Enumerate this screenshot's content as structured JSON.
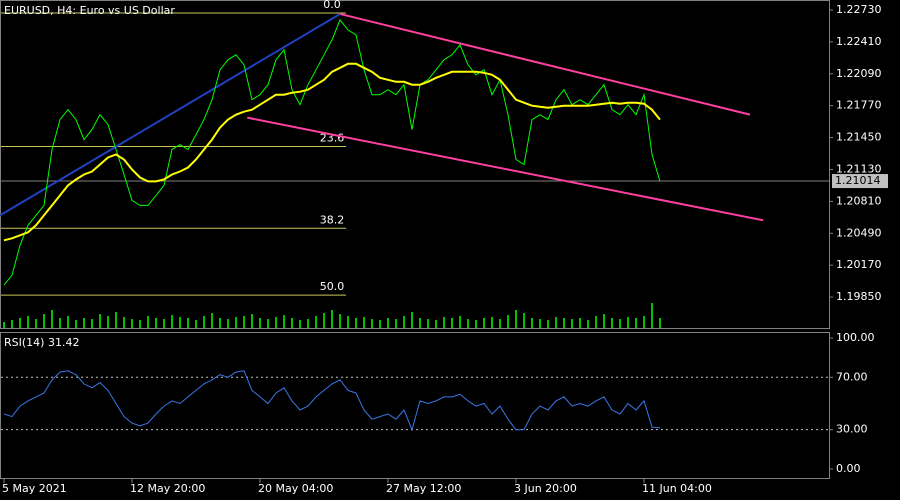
{
  "chart_data": [
    {
      "type": "line",
      "title": "EURUSD, H4: Euro vs US Dollar",
      "series": [
        {
          "color": "#00ff00",
          "values": [
            1.1997,
            1.2007,
            1.2037,
            1.2057,
            1.2067,
            1.2077,
            1.2133,
            1.2163,
            1.2173,
            1.2163,
            1.2143,
            1.2153,
            1.2168,
            1.2158,
            1.2133,
            1.2108,
            1.2082,
            1.2077,
            1.2077,
            1.2087,
            1.2097,
            1.2133,
            1.2138,
            1.2133,
            1.2148,
            1.2163,
            1.2183,
            1.2213,
            1.2223,
            1.2228,
            1.2218,
            1.2183,
            1.2188,
            1.2198,
            1.2223,
            1.2233,
            1.2193,
            1.2178,
            1.2198,
            1.2213,
            1.2228,
            1.2243,
            1.2263,
            1.2253,
            1.2248,
            1.2213,
            1.2188,
            1.2188,
            1.2193,
            1.2188,
            1.2198,
            1.2153,
            1.2198,
            1.2203,
            1.2213,
            1.2223,
            1.2228,
            1.2238,
            1.2218,
            1.2208,
            1.2213,
            1.2188,
            1.2203,
            1.2168,
            1.2123,
            1.2118,
            1.2163,
            1.2168,
            1.2163,
            1.2183,
            1.2193,
            1.2178,
            1.2183,
            1.2178,
            1.2188,
            1.2198,
            1.2173,
            1.2168,
            1.2178,
            1.2168,
            1.2188,
            1.2128,
            1.2101
          ]
        },
        {
          "color": "#ffff00",
          "values": [
            1.2042,
            1.2044,
            1.2047,
            1.205,
            1.2057,
            1.2067,
            1.2077,
            1.2087,
            1.2097,
            1.2103,
            1.2108,
            1.2111,
            1.2118,
            1.2125,
            1.2128,
            1.2123,
            1.2113,
            1.2105,
            1.2101,
            1.2101,
            1.2103,
            1.2108,
            1.2111,
            1.2115,
            1.2123,
            1.2133,
            1.2143,
            1.2155,
            1.2163,
            1.2168,
            1.2171,
            1.2173,
            1.2178,
            1.2183,
            1.2188,
            1.2188,
            1.219,
            1.2191,
            1.2193,
            1.2198,
            1.2203,
            1.2211,
            1.2215,
            1.2219,
            1.2219,
            1.2215,
            1.2211,
            1.2205,
            1.2203,
            1.2201,
            1.2201,
            1.2198,
            1.2198,
            1.2201,
            1.2205,
            1.2208,
            1.2211,
            1.2211,
            1.2211,
            1.2211,
            1.221,
            1.2208,
            1.2203,
            1.2193,
            1.2183,
            1.218,
            1.2177,
            1.2176,
            1.2175,
            1.2176,
            1.2177,
            1.2177,
            1.2177,
            1.2177,
            1.2178,
            1.2179,
            1.218,
            1.2179,
            1.218,
            1.218,
            1.2179,
            1.2173,
            1.2163
          ]
        }
      ],
      "volume": {
        "color": "#00c000",
        "values": [
          6,
          8,
          10,
          12,
          9,
          14,
          18,
          10,
          12,
          8,
          10,
          9,
          14,
          12,
          16,
          11,
          9,
          8,
          12,
          10,
          9,
          13,
          11,
          10,
          8,
          12,
          15,
          10,
          9,
          11,
          12,
          14,
          10,
          9,
          11,
          13,
          10,
          8,
          9,
          12,
          15,
          18,
          14,
          12,
          10,
          11,
          9,
          8,
          10,
          9,
          12,
          16,
          10,
          9,
          8,
          11,
          10,
          12,
          9,
          8,
          10,
          11,
          9,
          13,
          18,
          15,
          10,
          9,
          8,
          11,
          10,
          9,
          10,
          8,
          12,
          14,
          10,
          9,
          11,
          10,
          12,
          25,
          10
        ]
      },
      "ylim": [
        1.1954,
        1.2283
      ],
      "yticks": [
        {
          "value": 1.2273,
          "label": "1.22730"
        },
        {
          "value": 1.2241,
          "label": "1.22410"
        },
        {
          "value": 1.2209,
          "label": "1.22090"
        },
        {
          "value": 1.2177,
          "label": "1.21770"
        },
        {
          "value": 1.2145,
          "label": "1.21450"
        },
        {
          "value": 1.2113,
          "label": "1.21130"
        },
        {
          "value": 1.2081,
          "label": "1.20810"
        },
        {
          "value": 1.2049,
          "label": "1.20490"
        },
        {
          "value": 1.2017,
          "label": "1.20170"
        },
        {
          "value": 1.1985,
          "label": "1.19850"
        }
      ],
      "current_price": 1.21014,
      "fib": {
        "color": "#c8c85a",
        "levels": [
          {
            "value": 0,
            "label": "0.0"
          },
          {
            "value": 23.6,
            "label": "23.6"
          },
          {
            "value": 38.2,
            "label": "38.2"
          },
          {
            "value": 50,
            "label": "50.0"
          }
        ],
        "prices": [
          1.227,
          1.2136,
          1.2054,
          1.1987
        ]
      },
      "trendlines": [
        {
          "color": "#ff40a0",
          "x": [
            42,
            93.25
          ],
          "y": [
            1.2269,
            1.2168
          ]
        },
        {
          "color": "#ff40a0",
          "x": [
            30.4,
            94.9
          ],
          "y": [
            1.2165,
            1.2062
          ]
        },
        {
          "color": "#2040c0",
          "x": [
            -0.5,
            42
          ],
          "y": [
            1.2067,
            1.2269
          ]
        }
      ]
    },
    {
      "type": "line",
      "title": "RSI(14) 31.42",
      "categories": [
        "5 May 2021",
        null,
        null,
        null,
        null,
        null,
        null,
        null,
        null,
        null,
        null,
        null,
        null,
        null,
        null,
        null,
        "12 May 20:00",
        null,
        null,
        null,
        null,
        null,
        null,
        null,
        null,
        null,
        null,
        null,
        null,
        null,
        null,
        null,
        "20 May 04:00",
        null,
        null,
        null,
        null,
        null,
        null,
        null,
        null,
        null,
        null,
        null,
        null,
        null,
        null,
        null,
        "27 May 12:00",
        null,
        null,
        null,
        null,
        null,
        null,
        null,
        null,
        null,
        null,
        null,
        null,
        null,
        null,
        null,
        "3 Jun 20:00",
        null,
        null,
        null,
        null,
        null,
        null,
        null,
        null,
        null,
        null,
        null,
        null,
        null,
        null,
        null,
        "11 Jun 04:00",
        null,
        null
      ],
      "series": [
        {
          "color": "#3a78e8",
          "values": [
            42,
            40,
            48,
            52,
            55,
            58,
            68,
            74,
            75,
            72,
            65,
            62,
            66,
            60,
            50,
            40,
            35,
            33,
            35,
            42,
            48,
            52,
            50,
            55,
            60,
            65,
            68,
            72,
            70,
            74,
            75,
            60,
            55,
            50,
            58,
            62,
            52,
            45,
            48,
            55,
            60,
            65,
            68,
            60,
            58,
            45,
            38,
            40,
            42,
            38,
            45,
            30,
            52,
            50,
            52,
            55,
            55,
            57,
            52,
            48,
            50,
            42,
            48,
            38,
            30,
            30,
            42,
            48,
            45,
            52,
            55,
            48,
            50,
            48,
            52,
            55,
            45,
            42,
            50,
            45,
            52,
            32,
            31.42
          ]
        }
      ],
      "ylim": [
        -6.9,
        104.6
      ],
      "yticks": [
        {
          "value": 100,
          "label": "100.00"
        },
        {
          "value": 70,
          "label": "70.00"
        },
        {
          "value": 30,
          "label": "30.00"
        },
        {
          "value": 0,
          "label": "0.00"
        }
      ],
      "levels": [
        70,
        30
      ]
    }
  ]
}
